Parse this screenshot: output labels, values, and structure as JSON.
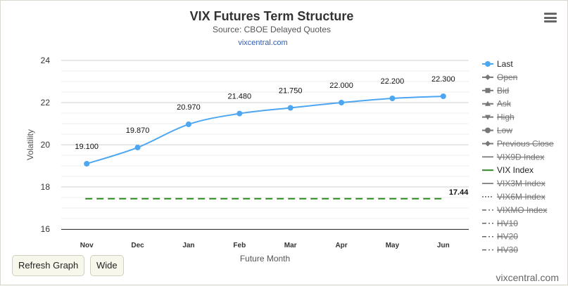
{
  "header": {
    "title": "VIX Futures Term Structure",
    "subtitle": "Source: CBOE Delayed Quotes",
    "link": "vixcentral.com"
  },
  "buttons": {
    "refresh": "Refresh Graph",
    "wide": "Wide"
  },
  "credit": "vixcentral.com",
  "icons": {
    "menu": "hamburger-menu-icon"
  },
  "chart_data": {
    "type": "line",
    "title": "VIX Futures Term Structure",
    "subtitle": "Source: CBOE Delayed Quotes",
    "xlabel": "Future Month",
    "ylabel": "Volatility",
    "categories": [
      "Nov",
      "Dec",
      "Jan",
      "Feb",
      "Mar",
      "Apr",
      "May",
      "Jun"
    ],
    "ylim": [
      16,
      24
    ],
    "yticks": [
      16,
      18,
      20,
      22,
      24
    ],
    "grid": true,
    "legend_position": "right",
    "series": [
      {
        "name": "Last",
        "values": [
          19.1,
          19.87,
          20.97,
          21.48,
          21.75,
          22.0,
          22.2,
          22.3
        ],
        "labels": [
          "19.100",
          "19.870",
          "20.970",
          "21.480",
          "21.750",
          "22.000",
          "22.200",
          "22.300"
        ],
        "color": "#4da6f0"
      },
      {
        "name": "VIX Index",
        "values": [
          17.44,
          17.44,
          17.44,
          17.44,
          17.44,
          17.44,
          17.44,
          17.44
        ],
        "end_label": "17.44",
        "color": "#2e8b22",
        "dash": "dashed"
      }
    ],
    "legend": [
      {
        "name": "Last",
        "symbol": "circle",
        "visible": true,
        "color": "#4da6f0"
      },
      {
        "name": "Open",
        "symbol": "diamond",
        "visible": false,
        "color": "#777777"
      },
      {
        "name": "Bid",
        "symbol": "square",
        "visible": false,
        "color": "#777777"
      },
      {
        "name": "Ask",
        "symbol": "triangle",
        "visible": false,
        "color": "#777777"
      },
      {
        "name": "High",
        "symbol": "triangle-down",
        "visible": false,
        "color": "#777777"
      },
      {
        "name": "Low",
        "symbol": "circle",
        "visible": false,
        "color": "#777777"
      },
      {
        "name": "Previous Close",
        "symbol": "diamond",
        "visible": false,
        "color": "#777777"
      },
      {
        "name": "VIX9D Index",
        "symbol": "solid",
        "visible": false,
        "color": "#777777"
      },
      {
        "name": "VIX Index",
        "symbol": "solid",
        "visible": true,
        "color": "#2e8b22"
      },
      {
        "name": "VIX3M Index",
        "symbol": "solid",
        "visible": false,
        "color": "#777777"
      },
      {
        "name": "VIX6M Index",
        "symbol": "dotted",
        "visible": false,
        "color": "#777777"
      },
      {
        "name": "VIXMO Index",
        "symbol": "dashdot",
        "visible": false,
        "color": "#777777"
      },
      {
        "name": "HV10",
        "symbol": "dashdot",
        "visible": false,
        "color": "#777777"
      },
      {
        "name": "HV20",
        "symbol": "dashdot",
        "visible": false,
        "color": "#777777"
      },
      {
        "name": "HV30",
        "symbol": "dashdot",
        "visible": false,
        "color": "#777777"
      }
    ]
  }
}
